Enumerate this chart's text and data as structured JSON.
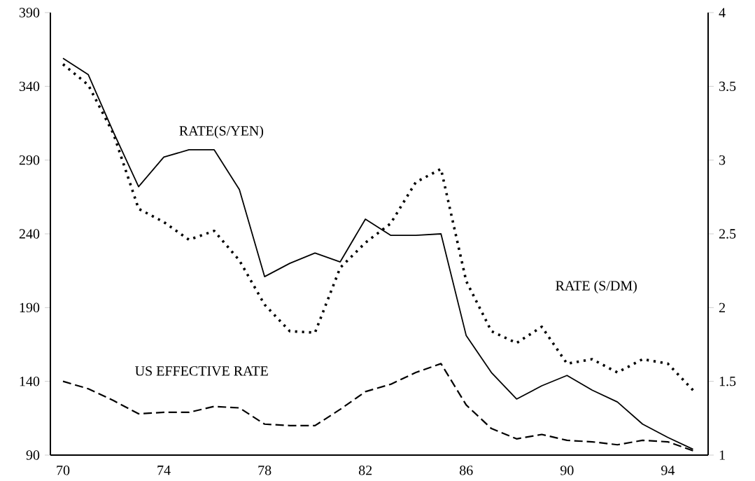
{
  "chart_data": {
    "type": "line",
    "x": [
      70,
      71,
      72,
      73,
      74,
      75,
      76,
      77,
      78,
      79,
      80,
      81,
      82,
      83,
      84,
      85,
      86,
      87,
      88,
      89,
      90,
      91,
      92,
      93,
      94,
      95
    ],
    "xlim": [
      69.5,
      95.6
    ],
    "xticks": [
      70,
      74,
      78,
      82,
      86,
      90,
      94
    ],
    "ylim": [
      90,
      390
    ],
    "yticks": [
      90,
      140,
      190,
      240,
      290,
      340,
      390
    ],
    "y2lim": [
      1,
      4
    ],
    "y2ticks": [
      1,
      1.5,
      2,
      2.5,
      3,
      3.5,
      4
    ],
    "series": [
      {
        "name": "RATE(S/YEN)",
        "color": "#000000",
        "line_style": "solid",
        "values": [
          359,
          348,
          309,
          272,
          292,
          297,
          297,
          270,
          211,
          220,
          227,
          221,
          250,
          239,
          239,
          240,
          171,
          146,
          128,
          137,
          144,
          134,
          126,
          111,
          102,
          94
        ]
      },
      {
        "name": "RATE (S/DM)",
        "color": "#000000",
        "line_style": "dotted",
        "axis": "y2",
        "values": [
          3.65,
          3.51,
          3.18,
          2.67,
          2.58,
          2.46,
          2.52,
          2.32,
          2.02,
          1.84,
          1.83,
          2.27,
          2.44,
          2.57,
          2.85,
          2.94,
          2.18,
          1.84,
          1.76,
          1.87,
          1.62,
          1.65,
          1.56,
          1.65,
          1.62,
          1.44
        ]
      },
      {
        "name": "US EFFECTIVE RATE",
        "color": "#000000",
        "line_style": "dashed",
        "values": [
          140,
          135,
          127,
          118,
          119,
          119,
          123,
          122,
          111,
          110,
          110,
          121,
          133,
          138,
          146,
          152,
          124,
          108,
          101,
          104,
          100,
          99,
          97,
          100,
          99,
          93
        ]
      }
    ]
  }
}
